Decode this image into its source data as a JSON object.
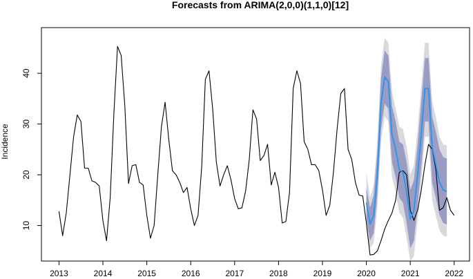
{
  "chart_data": {
    "type": "line",
    "title": "Forecasts from ARIMA(2,0,0)(1,1,0)[12]",
    "xlabel": "",
    "ylabel": "Incidence",
    "xlim": [
      2012.6,
      2022.35
    ],
    "ylim": [
      3,
      49
    ],
    "x_ticks": [
      2013,
      2014,
      2015,
      2016,
      2017,
      2018,
      2019,
      2020,
      2021,
      2022
    ],
    "y_ticks": [
      10,
      20,
      30,
      40
    ],
    "grid": false,
    "legend": "none",
    "colors": {
      "observed": "#000000",
      "forecast_mean": "#2196f3",
      "band_80": "#9a9cc4",
      "band_95": "#d8d9df"
    },
    "series": [
      {
        "role": "observed",
        "x_start": 2013.0,
        "step": 0.0833333,
        "values": [
          12.8,
          8.0,
          12.5,
          20.0,
          27.5,
          31.8,
          30.5,
          21.3,
          21.3,
          18.8,
          18.5,
          17.8,
          11.0,
          7.0,
          15.5,
          32.0,
          45.3,
          43.5,
          33.5,
          18.3,
          21.8,
          22.0,
          18.5,
          18.0,
          12.0,
          7.5,
          10.0,
          20.0,
          29.5,
          34.3,
          27.0,
          20.8,
          20.0,
          18.5,
          16.5,
          17.5,
          13.3,
          10.0,
          12.0,
          21.5,
          38.8,
          40.5,
          33.0,
          22.5,
          17.8,
          20.0,
          21.8,
          19.0,
          15.3,
          13.3,
          13.5,
          16.8,
          23.0,
          32.8,
          31.0,
          22.8,
          23.8,
          26.0,
          18.0,
          20.5,
          17.5,
          10.5,
          10.8,
          16.5,
          37.0,
          40.5,
          38.0,
          26.5,
          25.0,
          22.0,
          22.0,
          20.8,
          17.0,
          12.0,
          14.0,
          20.5,
          29.0,
          36.0,
          37.0,
          25.0,
          23.0,
          18.5,
          16.0,
          15.8,
          10.5,
          4.2,
          4.3,
          5.0,
          7.0,
          9.3,
          11.0,
          12.5,
          15.0,
          20.5,
          20.8,
          20.0,
          13.0,
          11.0,
          13.0,
          17.0,
          22.0,
          26.0,
          25.0,
          21.0,
          13.0,
          13.5,
          15.5,
          13.0,
          12.0
        ]
      },
      {
        "role": "forecast_mean",
        "x_start": 2020.0,
        "step": 0.0833333,
        "values": [
          14.5,
          10.3,
          12.0,
          20.0,
          34.0,
          39.3,
          38.3,
          28.0,
          25.0,
          21.0,
          20.5,
          16.5,
          11.3,
          13.0,
          20.0,
          28.0,
          37.0,
          37.0,
          25.3,
          22.0,
          18.5,
          17.0,
          16.7
        ],
        "lower_80": [
          11.5,
          7.0,
          8.5,
          16.0,
          29.0,
          34.0,
          33.0,
          22.5,
          19.5,
          15.5,
          14.5,
          10.5,
          5.5,
          7.0,
          14.0,
          21.5,
          30.5,
          30.5,
          18.5,
          15.5,
          12.0,
          10.5,
          10.2
        ],
        "upper_80": [
          17.5,
          13.5,
          16.0,
          24.5,
          39.0,
          44.5,
          43.5,
          33.5,
          30.5,
          26.5,
          26.0,
          22.5,
          17.0,
          19.0,
          26.0,
          34.5,
          43.0,
          43.0,
          31.5,
          28.5,
          25.0,
          23.5,
          23.2
        ],
        "lower_95": [
          9.5,
          5.5,
          6.5,
          13.5,
          26.5,
          31.5,
          30.5,
          19.5,
          16.5,
          12.5,
          11.5,
          7.5,
          3.0,
          4.0,
          11.0,
          18.5,
          27.5,
          27.5,
          15.0,
          12.0,
          9.0,
          8.0,
          7.8
        ],
        "upper_95": [
          20.5,
          15.5,
          18.0,
          27.0,
          41.5,
          47.0,
          46.0,
          36.5,
          33.0,
          29.5,
          29.0,
          25.5,
          20.0,
          22.0,
          29.0,
          37.5,
          46.0,
          46.0,
          34.5,
          31.5,
          27.5,
          26.0,
          25.8
        ]
      }
    ]
  }
}
